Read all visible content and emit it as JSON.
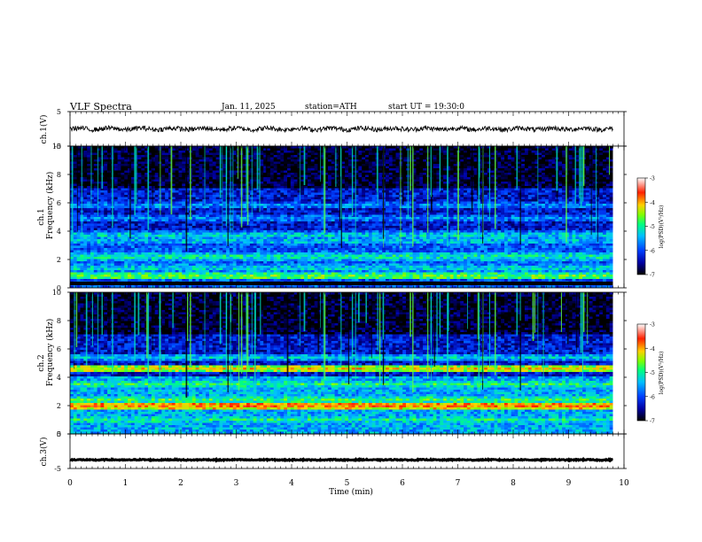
{
  "header": {
    "title": "VLF  Spectra",
    "date": "Jan. 11, 2025",
    "station": "station=ATH",
    "start_ut": "start  UT  =   19:30:0"
  },
  "colors": {
    "scale": [
      "#000000",
      "#0000a0",
      "#0040ff",
      "#00c0ff",
      "#00ff80",
      "#80ff00",
      "#ffd000",
      "#ff2000",
      "#ffffff"
    ],
    "trace": "#000000"
  },
  "chart_data": [
    {
      "type": "line",
      "name": "ch1-waveform",
      "ylabel": "ch.1(V)",
      "ylim": [
        -5,
        5
      ],
      "yticks": [
        -5,
        5
      ],
      "xlim": [
        0,
        10
      ],
      "level": 0,
      "amplitude": 0.7
    },
    {
      "type": "heatmap",
      "name": "ch1-spectrogram",
      "ylabel": "Frequency  (kHz)",
      "channel_label": "ch.1",
      "ylim": [
        0,
        10
      ],
      "yticks": [
        0,
        2,
        4,
        6,
        8,
        10
      ],
      "xlim": [
        0,
        10
      ],
      "data_end_min": 9.8,
      "colorbar": {
        "label": "log(PSD)(V²/Hz)",
        "range": [
          -7,
          -3
        ],
        "ticks": [
          -3,
          -4,
          -5,
          -6,
          -7
        ]
      },
      "bands_khz": [
        {
          "f": 0.8,
          "level": -4.6
        },
        {
          "f": 1.4,
          "level": -5.2
        },
        {
          "f": 2.2,
          "level": -5.0
        },
        {
          "f": 3.3,
          "level": -5.3
        },
        {
          "f": 3.7,
          "level": -5.2
        },
        {
          "f": 4.9,
          "level": -5.6
        },
        {
          "f": 5.8,
          "level": -5.6
        }
      ]
    },
    {
      "type": "heatmap",
      "name": "ch2-spectrogram",
      "ylabel": "Frequency  (kHz)",
      "channel_label": "ch.2",
      "ylim": [
        0,
        10
      ],
      "yticks": [
        0,
        2,
        4,
        6,
        8,
        10
      ],
      "xlim": [
        0,
        10
      ],
      "data_end_min": 9.8,
      "colorbar": {
        "label": "log(PSD)(V²/Hz)",
        "range": [
          -7,
          -3
        ],
        "ticks": [
          -3,
          -4,
          -5,
          -6,
          -7
        ]
      },
      "bands_khz": [
        {
          "f": 1.0,
          "level": -5.0
        },
        {
          "f": 2.0,
          "level": -3.8
        },
        {
          "f": 2.4,
          "level": -4.8
        },
        {
          "f": 3.5,
          "level": -4.9
        },
        {
          "f": 4.6,
          "level": -4.2
        },
        {
          "f": 5.4,
          "level": -5.3
        }
      ]
    },
    {
      "type": "line",
      "name": "ch3-waveform",
      "ylabel": "ch.3(V)",
      "ylim": [
        -5,
        5
      ],
      "yticks": [
        -5,
        5
      ],
      "xlim": [
        0,
        10
      ],
      "level": -2.5,
      "amplitude": 0.15
    }
  ],
  "time_axis": {
    "label": "Time  (min)",
    "ticks": [
      0,
      1,
      2,
      3,
      4,
      5,
      6,
      7,
      8,
      9,
      10
    ]
  }
}
